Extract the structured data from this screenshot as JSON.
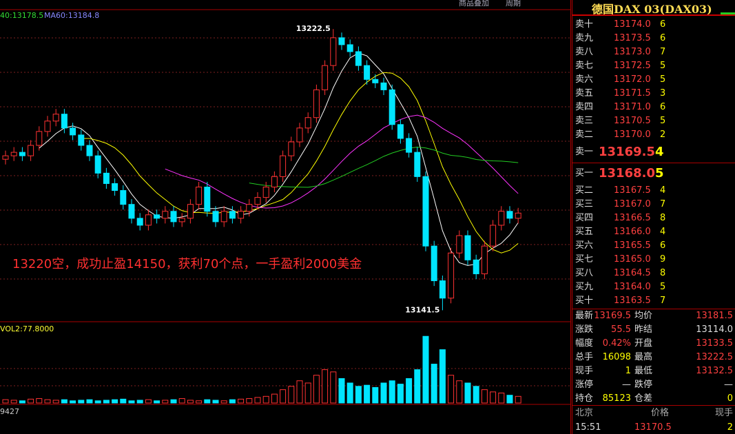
{
  "toolbar": {
    "overlay": "商品叠加",
    "period": "周期"
  },
  "ma_labels": [
    "40:13178.5",
    "MA60:13184.8"
  ],
  "chart_data": {
    "type": "candlestick",
    "open": [
      13185,
      13186,
      13187,
      13186,
      13189,
      13193,
      13196,
      13198,
      13194,
      13192,
      13189,
      13186,
      13181,
      13178,
      13176,
      13172,
      13168,
      13166,
      13169,
      13168,
      13170,
      13167,
      13168,
      13172,
      13177,
      13170,
      13167,
      13170,
      13168,
      13170,
      13172,
      13174,
      13177,
      13180,
      13186,
      13190,
      13194,
      13197,
      13205,
      13212,
      13220,
      13218,
      13216,
      13212,
      13208,
      13207,
      13205,
      13195,
      13191,
      13187,
      13180,
      13160,
      13150,
      13145,
      13158,
      13163,
      13156,
      13152,
      13160,
      13166,
      13170,
      13168
    ],
    "high": [
      13187.5,
      13188.5,
      13188.5,
      13190.5,
      13194.5,
      13197.5,
      13199.5,
      13199.5,
      13195.5,
      13193.5,
      13190.5,
      13187.5,
      13182.5,
      13179.5,
      13177.5,
      13173.5,
      13169.5,
      13170.5,
      13170.5,
      13171.5,
      13171.5,
      13169.5,
      13173.5,
      13178.5,
      13178.5,
      13171.5,
      13171.5,
      13171.5,
      13171.5,
      13173.5,
      13175.5,
      13178.5,
      13181.5,
      13187.5,
      13191.5,
      13195.5,
      13198.5,
      13206.5,
      13213.5,
      13222.5,
      13221.5,
      13219.5,
      13217.5,
      13213.5,
      13209.5,
      13208.5,
      13206.5,
      13196.5,
      13192.5,
      13188.5,
      13181.5,
      13161.5,
      13151.5,
      13159.5,
      13164.5,
      13164.5,
      13157.5,
      13161.5,
      13167.5,
      13171.5,
      13171.5,
      13171
    ],
    "low": [
      13183.5,
      13184.5,
      13184.5,
      13184.5,
      13187.5,
      13191.5,
      13194.5,
      13192.5,
      13190.5,
      13187.5,
      13184.5,
      13179.5,
      13176.5,
      13174.5,
      13170.5,
      13166.5,
      13164.5,
      13164.5,
      13166.5,
      13166.5,
      13165.5,
      13165.5,
      13166.5,
      13170.5,
      13168.5,
      13165.5,
      13165.5,
      13166.5,
      13166.5,
      13168.5,
      13170.5,
      13172.5,
      13175.5,
      13178.5,
      13184.5,
      13188.5,
      13192.5,
      13195.5,
      13203.5,
      13210.5,
      13216.5,
      13214.5,
      13210.5,
      13206.5,
      13205.5,
      13203.5,
      13193.5,
      13189.5,
      13185.5,
      13178.5,
      13158.5,
      13148.5,
      13141.5,
      13143.5,
      13156.5,
      13154.5,
      13150.5,
      13150.5,
      13158.5,
      13164.5,
      13166.5,
      13166.5
    ],
    "close": [
      13186,
      13187,
      13186,
      13189,
      13193,
      13196,
      13198,
      13194,
      13192,
      13189,
      13186,
      13181,
      13178,
      13176,
      13172,
      13168,
      13166,
      13169,
      13168,
      13170,
      13167,
      13168,
      13172,
      13177,
      13170,
      13167,
      13170,
      13168,
      13170,
      13172,
      13174,
      13177,
      13180,
      13186,
      13190,
      13194,
      13197,
      13205,
      13212,
      13220,
      13218,
      13216,
      13212,
      13208,
      13207,
      13205,
      13195,
      13191,
      13187,
      13180,
      13160,
      13150,
      13145,
      13158,
      13163,
      13156,
      13152,
      13160,
      13166,
      13170,
      13168,
      13169.5
    ],
    "ylim": [
      13138.6,
      13227.9
    ],
    "up_color": "#ff3232",
    "down_color": "#00e5ff",
    "high_label": "13222.5",
    "low_label": "13141.5"
  },
  "note": "13220空，成功止盈14150，获利70个点，一手盈利2000美金",
  "volume_chart": {
    "type": "bar",
    "label": "VOL2:77.8000",
    "values": [
      30,
      25,
      20,
      35,
      40,
      30,
      25,
      30,
      20,
      25,
      30,
      20,
      25,
      30,
      35,
      20,
      25,
      30,
      20,
      25,
      30,
      40,
      25,
      20,
      30,
      25,
      20,
      30,
      35,
      40,
      50,
      60,
      80,
      120,
      150,
      200,
      180,
      250,
      300,
      280,
      220,
      180,
      150,
      160,
      140,
      180,
      200,
      170,
      220,
      300,
      600,
      350,
      480,
      250,
      200,
      180,
      150,
      120,
      100,
      90,
      70,
      60
    ],
    "ylim": [
      0,
      620
    ]
  },
  "lower_label": "9427",
  "quote": {
    "title": "德国DAX  03(DAX03)",
    "asks": [
      [
        "卖十",
        "13174.0",
        "6"
      ],
      [
        "卖九",
        "13173.5",
        "6"
      ],
      [
        "卖八",
        "13173.0",
        "7"
      ],
      [
        "卖七",
        "13172.5",
        "5"
      ],
      [
        "卖六",
        "13172.0",
        "5"
      ],
      [
        "卖五",
        "13171.5",
        "3"
      ],
      [
        "卖四",
        "13171.0",
        "6"
      ],
      [
        "卖三",
        "13170.5",
        "5"
      ],
      [
        "卖二",
        "13170.0",
        "2"
      ],
      [
        "卖一",
        "13169.5",
        "4"
      ]
    ],
    "bids": [
      [
        "买一",
        "13168.0",
        "5"
      ],
      [
        "买二",
        "13167.5",
        "4"
      ],
      [
        "买三",
        "13167.0",
        "7"
      ],
      [
        "买四",
        "13166.5",
        "8"
      ],
      [
        "买五",
        "13166.0",
        "4"
      ],
      [
        "买六",
        "13165.5",
        "6"
      ],
      [
        "买七",
        "13165.0",
        "9"
      ],
      [
        "买八",
        "13164.5",
        "8"
      ],
      [
        "买九",
        "13164.0",
        "5"
      ],
      [
        "买十",
        "13163.5",
        "7"
      ]
    ],
    "stats": [
      [
        "最新",
        "13169.5",
        "均价",
        "13181.5"
      ],
      [
        "涨跌",
        "55.5",
        "昨结",
        "13114.0"
      ],
      [
        "幅度",
        "0.42%",
        "开盘",
        "13133.5"
      ],
      [
        "总手",
        "16098",
        "最高",
        "13222.5"
      ],
      [
        "现手",
        "1",
        "最低",
        "13132.5"
      ],
      [
        "涨停",
        "—",
        "跌停",
        "—"
      ],
      [
        "持仓",
        "85123",
        "仓差",
        "0"
      ]
    ],
    "trades_header": [
      "北京",
      "价格",
      "现手"
    ],
    "trades": [
      [
        "15:51",
        "13170.5",
        "2"
      ]
    ]
  }
}
